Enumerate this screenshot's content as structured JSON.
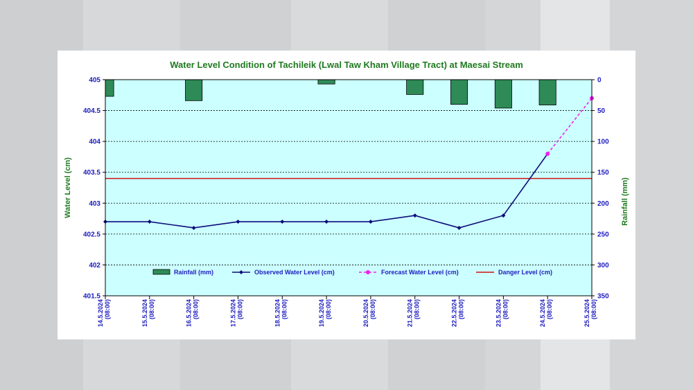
{
  "chart_data": {
    "type": "line",
    "title": "Water Level Condition of Tachileik (Lwal Taw Kham Village Tract) at Maesai Stream",
    "ylabel": "Water Level (cm)",
    "y2label": "Rainfall (mm)",
    "ylim": [
      401.5,
      405
    ],
    "yticks": [
      "405",
      "404.5",
      "404",
      "403.5",
      "403",
      "402.5",
      "402",
      "401.5"
    ],
    "y2lim": [
      0,
      350
    ],
    "y2ticks": [
      "0",
      "50",
      "100",
      "150",
      "200",
      "250",
      "300",
      "350"
    ],
    "y2_reversed": true,
    "categories": [
      [
        "14.5.2024",
        "(08:00)"
      ],
      [
        "15.5.2024",
        "(08:00)"
      ],
      [
        "16.5.2024",
        "(08:00)"
      ],
      [
        "17.5.2024",
        "(08:00)"
      ],
      [
        "18.5.2024",
        "(08:00)"
      ],
      [
        "19.5.2024",
        "(08:00)"
      ],
      [
        "20.5.2024",
        "(08:00)"
      ],
      [
        "21.5.2024",
        "(08:00)"
      ],
      [
        "22.5.2024",
        "(08:00)"
      ],
      [
        "23.5.2024",
        "(08:00)"
      ],
      [
        "24.5.2024",
        "(08:00)"
      ],
      [
        "25.5.2024",
        "(08:00)"
      ]
    ],
    "series": [
      {
        "name": "Rainfall (mm)",
        "type": "bar",
        "axis": "y2",
        "color": "#2e8b57",
        "values": [
          27,
          0,
          34,
          0,
          0,
          7,
          0,
          24,
          40,
          46,
          41,
          null
        ]
      },
      {
        "name": "Observed Water Level (cm)",
        "type": "line",
        "axis": "y",
        "color": "#0b0b7a",
        "values": [
          402.7,
          402.7,
          402.6,
          402.7,
          402.7,
          402.7,
          402.7,
          402.8,
          402.6,
          402.8,
          403.8,
          null
        ]
      },
      {
        "name": "Forecast Water Level (cm)",
        "type": "line",
        "axis": "y",
        "color": "#ee22ee",
        "dashed": true,
        "values": [
          null,
          null,
          null,
          null,
          null,
          null,
          null,
          null,
          null,
          null,
          403.8,
          404.7
        ]
      },
      {
        "name": "Danger Level (cm)",
        "type": "hline",
        "axis": "y",
        "color": "#d01010",
        "value": 403.4
      }
    ],
    "grid": true,
    "plot_background": "#ccffff",
    "legend_position": "bottom-inside"
  }
}
